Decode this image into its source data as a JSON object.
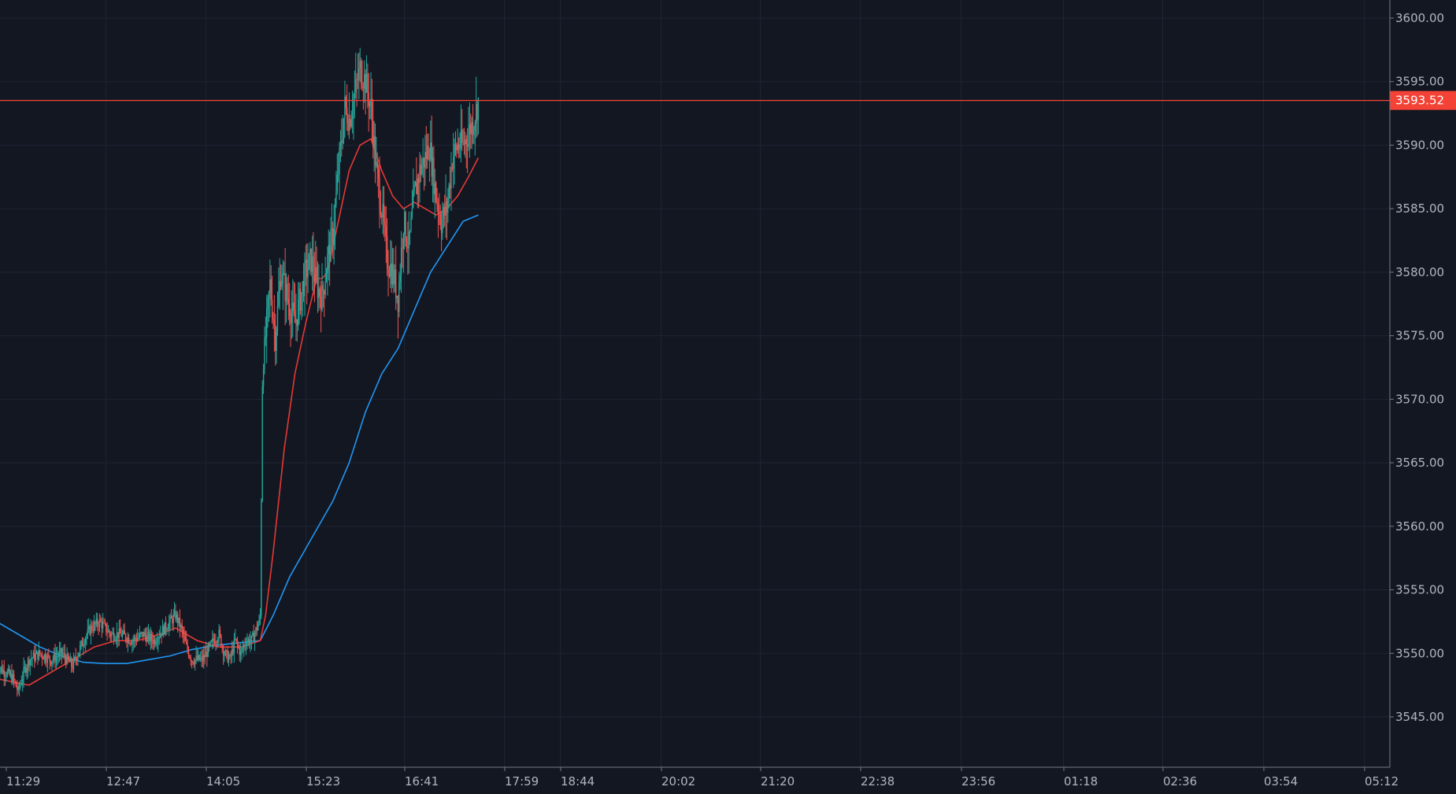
{
  "colors": {
    "background": "#131722",
    "grid": "#1e2433",
    "axis_text": "#b2b5be",
    "axis_line": "#787b86",
    "up_candle": "#26a69a",
    "down_candle": "#ef5350",
    "ma_fast": "#e53935",
    "ma_slow": "#2196f3",
    "price_line": "#f44336"
  },
  "chart_data": {
    "type": "candlestick",
    "last_price": 3593.52,
    "last_price_label": "3593.52",
    "ylim": [
      3541,
      3601
    ],
    "y_ticks": [
      3545,
      3550,
      3555,
      3560,
      3565,
      3570,
      3575,
      3580,
      3585,
      3590,
      3595,
      3600
    ],
    "y_tick_labels": [
      "3545.00",
      "3550.00",
      "3555.00",
      "3560.00",
      "3565.00",
      "3570.00",
      "3575.00",
      "3580.00",
      "3585.00",
      "3590.00",
      "3595.00",
      "3600.00"
    ],
    "x_tick_labels": [
      "11:29",
      "12:47",
      "14:05",
      "15:23",
      "16:41",
      "17:59",
      "18:44",
      "20:02",
      "21:20",
      "22:38",
      "23:56",
      "01:18",
      "02:36",
      "03:54",
      "05:12"
    ],
    "price_path": [
      [
        "11:20",
        3549
      ],
      [
        "11:29",
        3548.5
      ],
      [
        "11:35",
        3548
      ],
      [
        "11:40",
        3547
      ],
      [
        "11:45",
        3548.5
      ],
      [
        "11:50",
        3549.5
      ],
      [
        "12:00",
        3550
      ],
      [
        "12:10",
        3549.5
      ],
      [
        "12:20",
        3550
      ],
      [
        "12:30",
        3549
      ],
      [
        "12:40",
        3551
      ],
      [
        "12:47",
        3552
      ],
      [
        "12:55",
        3552.5
      ],
      [
        "13:05",
        3551.5
      ],
      [
        "13:15",
        3551.5
      ],
      [
        "13:25",
        3551
      ],
      [
        "13:35",
        3551.5
      ],
      [
        "13:45",
        3551
      ],
      [
        "13:55",
        3552
      ],
      [
        "14:00",
        3552.5
      ],
      [
        "14:05",
        3553
      ],
      [
        "14:10",
        3552
      ],
      [
        "14:15",
        3550.5
      ],
      [
        "14:20",
        3549.5
      ],
      [
        "14:30",
        3549.5
      ],
      [
        "14:40",
        3551
      ],
      [
        "14:45",
        3551.5
      ],
      [
        "14:50",
        3550
      ],
      [
        "14:55",
        3549.5
      ],
      [
        "15:00",
        3551
      ],
      [
        "15:05",
        3550
      ],
      [
        "15:10",
        3551
      ],
      [
        "15:15",
        3551
      ],
      [
        "15:20",
        3552
      ],
      [
        "15:23",
        3553
      ],
      [
        "15:25",
        3571
      ],
      [
        "15:28",
        3575
      ],
      [
        "15:32",
        3579
      ],
      [
        "15:37",
        3575
      ],
      [
        "15:42",
        3580
      ],
      [
        "15:48",
        3578
      ],
      [
        "15:55",
        3576
      ],
      [
        "16:00",
        3578
      ],
      [
        "16:05",
        3580
      ],
      [
        "16:10",
        3581
      ],
      [
        "16:15",
        3579
      ],
      [
        "16:20",
        3578
      ],
      [
        "16:25",
        3581
      ],
      [
        "16:30",
        3583
      ],
      [
        "16:35",
        3588
      ],
      [
        "16:41",
        3593
      ],
      [
        "16:45",
        3592
      ],
      [
        "16:50",
        3594
      ],
      [
        "16:55",
        3596
      ],
      [
        "17:00",
        3595
      ],
      [
        "17:05",
        3593
      ],
      [
        "17:10",
        3588
      ],
      [
        "17:15",
        3585
      ],
      [
        "17:20",
        3581
      ],
      [
        "17:25",
        3580
      ],
      [
        "17:30",
        3578
      ],
      [
        "17:35",
        3584
      ],
      [
        "17:40",
        3582
      ],
      [
        "17:45",
        3586
      ],
      [
        "17:50",
        3588
      ],
      [
        "17:55",
        3589
      ],
      [
        "17:59",
        3590
      ],
      [
        "18:05",
        3586
      ],
      [
        "18:10",
        3584
      ],
      [
        "18:15",
        3585
      ],
      [
        "18:20",
        3589
      ],
      [
        "18:25",
        3590
      ],
      [
        "18:30",
        3590
      ],
      [
        "18:35",
        3591
      ],
      [
        "18:40",
        3592
      ],
      [
        "18:44",
        3593.5
      ]
    ],
    "ma_fast": [
      [
        "11:20",
        3548
      ],
      [
        "11:50",
        3547.5
      ],
      [
        "12:10",
        3548.5
      ],
      [
        "12:30",
        3549.5
      ],
      [
        "12:50",
        3550.5
      ],
      [
        "13:10",
        3551
      ],
      [
        "13:30",
        3551
      ],
      [
        "13:50",
        3551.5
      ],
      [
        "14:05",
        3552
      ],
      [
        "14:25",
        3551
      ],
      [
        "14:45",
        3550.5
      ],
      [
        "15:05",
        3550.5
      ],
      [
        "15:23",
        3551
      ],
      [
        "15:28",
        3553
      ],
      [
        "15:35",
        3558
      ],
      [
        "15:45",
        3566
      ],
      [
        "15:55",
        3572
      ],
      [
        "16:05",
        3576
      ],
      [
        "16:15",
        3579.5
      ],
      [
        "16:20",
        3579.5
      ],
      [
        "16:25",
        3580
      ],
      [
        "16:35",
        3584
      ],
      [
        "16:45",
        3588
      ],
      [
        "16:55",
        3590
      ],
      [
        "17:05",
        3590.5
      ],
      [
        "17:15",
        3588
      ],
      [
        "17:25",
        3586
      ],
      [
        "17:35",
        3585
      ],
      [
        "17:45",
        3585.5
      ],
      [
        "17:55",
        3585
      ],
      [
        "18:05",
        3584.5
      ],
      [
        "18:15",
        3585
      ],
      [
        "18:25",
        3586
      ],
      [
        "18:35",
        3587.5
      ],
      [
        "18:44",
        3589
      ]
    ],
    "ma_slow": [
      [
        "11:20",
        3552.5
      ],
      [
        "11:40",
        3551.5
      ],
      [
        "12:00",
        3550.5
      ],
      [
        "12:20",
        3549.8
      ],
      [
        "12:40",
        3549.3
      ],
      [
        "13:00",
        3549.2
      ],
      [
        "13:20",
        3549.2
      ],
      [
        "13:40",
        3549.5
      ],
      [
        "14:00",
        3549.8
      ],
      [
        "14:20",
        3550.3
      ],
      [
        "14:40",
        3550.6
      ],
      [
        "15:00",
        3550.8
      ],
      [
        "15:23",
        3551
      ],
      [
        "15:35",
        3553
      ],
      [
        "15:50",
        3556
      ],
      [
        "16:10",
        3559
      ],
      [
        "16:30",
        3562
      ],
      [
        "16:45",
        3565
      ],
      [
        "17:00",
        3569
      ],
      [
        "17:15",
        3572
      ],
      [
        "17:30",
        3574
      ],
      [
        "17:45",
        3577
      ],
      [
        "18:00",
        3580
      ],
      [
        "18:15",
        3582
      ],
      [
        "18:30",
        3584
      ],
      [
        "18:44",
        3584.5
      ]
    ]
  }
}
